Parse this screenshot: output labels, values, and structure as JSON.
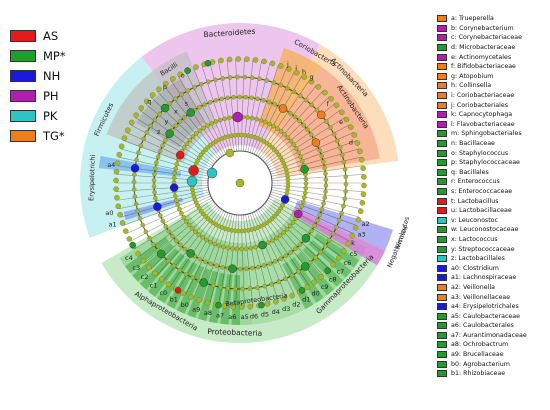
{
  "colors": {
    "AS": "#e41a1c",
    "MP": "#1f9e2c",
    "NH": "#1a1adc",
    "PH": "#b01fb0",
    "PK": "#2ec4c4",
    "TG": "#f07d1a"
  },
  "group_legend": [
    {
      "label": "AS",
      "group": "AS"
    },
    {
      "label": "MP*",
      "group": "MP"
    },
    {
      "label": "NH",
      "group": "NH"
    },
    {
      "label": "PH",
      "group": "PH"
    },
    {
      "label": "PK",
      "group": "PK"
    },
    {
      "label": "TG*",
      "group": "TG"
    }
  ],
  "taxa_legend": [
    {
      "text": "a: Trueperella",
      "group": "TG"
    },
    {
      "text": "b: Corynebacterium",
      "group": "PH"
    },
    {
      "text": "c: Corynebacteriaceae",
      "group": "PH"
    },
    {
      "text": "d: Microbacteraceae",
      "group": "MP"
    },
    {
      "text": "e: Actinomycetales",
      "group": "PH"
    },
    {
      "text": "f: Bifidobacteriaceae",
      "group": "TG"
    },
    {
      "text": "g: Atopobium",
      "group": "TG"
    },
    {
      "text": "h: Collinsella",
      "group": "TG"
    },
    {
      "text": "i: Coriobacteriaceae",
      "group": "TG"
    },
    {
      "text": "j: Coriobacteriales",
      "group": "TG"
    },
    {
      "text": "k: Capnocytophaga",
      "group": "PH"
    },
    {
      "text": "l: Flavobacteriaceae",
      "group": "PH"
    },
    {
      "text": "m: Sphingobacteriales",
      "group": "MP"
    },
    {
      "text": "n: Bacillaceae",
      "group": "MP"
    },
    {
      "text": "o: Staphylococcus",
      "group": "MP"
    },
    {
      "text": "p: Staphylococcaceae",
      "group": "MP"
    },
    {
      "text": "q: Bacillales",
      "group": "MP"
    },
    {
      "text": "r: Enterococcus",
      "group": "MP"
    },
    {
      "text": "s: Enterococcaceae",
      "group": "MP"
    },
    {
      "text": "t: Lactobacillus",
      "group": "AS"
    },
    {
      "text": "u: Lactobacillaceae",
      "group": "AS"
    },
    {
      "text": "v: Leuconostoc",
      "group": "PK"
    },
    {
      "text": "w: Leuconostocaceae",
      "group": "MP"
    },
    {
      "text": "x: Lactococcus",
      "group": "MP"
    },
    {
      "text": "y: Streptococcaceae",
      "group": "MP"
    },
    {
      "text": "z: Lactobacillales",
      "group": "PK"
    },
    {
      "text": "a0: Clostridium",
      "group": "NH"
    },
    {
      "text": "a1: Lachnospiraceae",
      "group": "NH"
    },
    {
      "text": "a2: Veillonella",
      "group": "TG"
    },
    {
      "text": "a3: Veillonellaceae",
      "group": "TG"
    },
    {
      "text": "a4: Erysipelotrichales",
      "group": "NH"
    },
    {
      "text": "a5: Caulobacteraceae",
      "group": "MP"
    },
    {
      "text": "a6: Caulobacterales",
      "group": "MP"
    },
    {
      "text": "a7: Aurantimonadaceae",
      "group": "MP"
    },
    {
      "text": "a8: Ochrobactrum",
      "group": "MP"
    },
    {
      "text": "a9: Brucellaceae",
      "group": "MP"
    },
    {
      "text": "b0: Agrobacterium",
      "group": "MP"
    },
    {
      "text": "b1: Rhizobiaceae",
      "group": "MP"
    }
  ],
  "clade_labels": {
    "bacteroidetes": "Bacteroidetes",
    "coriobacteria": "Coriobacteria",
    "actinobacteria_outer": "Actinobacteria",
    "actinobacteria_inner": "Actinobacteria",
    "firmicutes_left": "Firmicutes",
    "bacilli": "Bacilli",
    "erysipelotrichi": "Erysipelotrichi",
    "firmicutes_right": "Firmicutes",
    "negativicutes": "Negativicutes",
    "proteobacteria": "Proteobacteria",
    "alphaproteobacteria": "Alphaproteobacteria",
    "betaproteobacteria": "Betaproteobacteria",
    "gammaproteobacteria": "Gammaproteobacteria"
  },
  "wedge_letters": {
    "orange_top": [
      "j",
      "i",
      "h",
      "g"
    ],
    "orange_right": [
      "f",
      "e",
      "d"
    ],
    "grey_left": [
      "q",
      "p",
      "o"
    ],
    "grey_inner": [
      "z",
      "y",
      "x",
      "s"
    ],
    "left_blue": [
      "a1",
      "a0"
    ],
    "left_ery": [
      "a4"
    ],
    "right_blue": [
      "a2",
      "a3"
    ],
    "right_purple": [
      "k"
    ],
    "green_bottom": [
      "a5",
      "a6",
      "a7",
      "a8",
      "a9",
      "b0",
      "b1",
      "c0",
      "c1",
      "c2",
      "c3",
      "c4",
      "c5",
      "c6",
      "c7",
      "c8",
      "c9",
      "d0",
      "d1",
      "d2",
      "d3",
      "d4",
      "d5",
      "d6"
    ]
  }
}
